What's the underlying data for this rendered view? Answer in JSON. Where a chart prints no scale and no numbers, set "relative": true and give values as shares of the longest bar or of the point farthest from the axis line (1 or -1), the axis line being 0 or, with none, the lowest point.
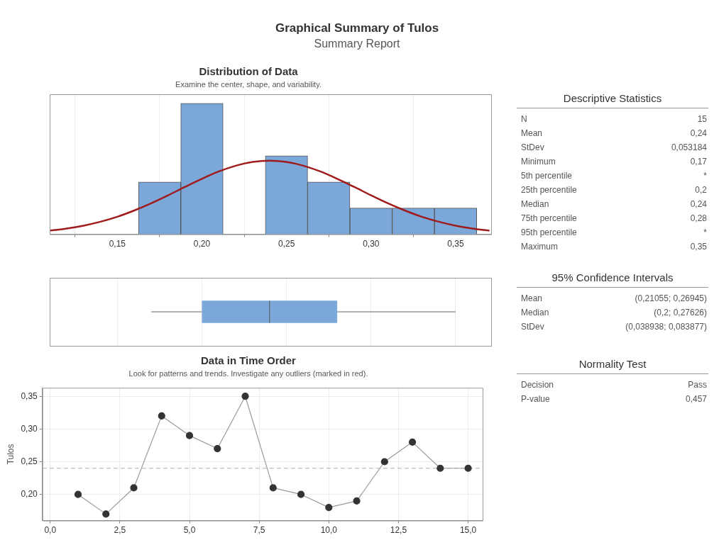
{
  "chart_data": [
    {
      "type": "other",
      "title": "Graphical Summary of Tulos",
      "subtitle": "Summary Report"
    },
    {
      "type": "histogram",
      "title": "Distribution of Data",
      "subtitle": "Examine the center, shape, and variability.",
      "relative": true,
      "grid": "x",
      "bins": [
        0.1625,
        0.1875,
        0.2125,
        0.2375,
        0.2625,
        0.2875,
        0.3125,
        0.3375,
        0.3625
      ],
      "xlim": [
        0.11,
        0.371
      ],
      "xticks": [
        {
          "value": 0.15,
          "label": "0,15"
        },
        {
          "value": 0.2,
          "label": "0,20"
        },
        {
          "value": 0.25,
          "label": "0,25"
        },
        {
          "value": 0.3,
          "label": "0,30"
        },
        {
          "value": 0.35,
          "label": "0,35"
        }
      ],
      "series": [
        {
          "type": "histogram",
          "color": "#7ba7d9",
          "values": [
            0.4,
            1,
            0,
            0.6,
            0.4,
            0.2,
            0.2,
            0.2
          ]
        },
        {
          "type": "line",
          "color": "#a01c1c",
          "x": [
            0.11,
            0.12,
            0.13,
            0.14,
            0.15,
            0.16,
            0.17,
            0.18,
            0.19,
            0.2,
            0.21,
            0.22,
            0.23,
            0.24,
            0.25,
            0.26,
            0.27,
            0.28,
            0.29,
            0.3,
            0.31,
            0.32,
            0.33,
            0.34,
            0.35,
            0.36,
            0.37
          ],
          "values": [
            0.028,
            0.044,
            0.066,
            0.096,
            0.134,
            0.182,
            0.237,
            0.298,
            0.362,
            0.424,
            0.48,
            0.524,
            0.553,
            0.563,
            0.553,
            0.524,
            0.48,
            0.424,
            0.362,
            0.298,
            0.237,
            0.182,
            0.134,
            0.096,
            0.066,
            0.044,
            0.028
          ]
        }
      ]
    },
    {
      "type": "box",
      "orientation": "horizontal",
      "categories": [
        null
      ],
      "color": "#7ba7d9",
      "grid": "x",
      "tick_labels": false,
      "xlim": [
        0.11,
        0.371
      ],
      "xticks": [
        {
          "value": 0.15,
          "label": null
        },
        {
          "value": 0.2,
          "label": null
        },
        {
          "value": 0.25,
          "label": null
        },
        {
          "value": 0.3,
          "label": null
        },
        {
          "value": 0.35,
          "label": null
        }
      ],
      "boxes": [
        {
          "low": 0.17,
          "q1": 0.2,
          "median": 0.24,
          "q3": 0.28,
          "high": 0.35
        }
      ]
    },
    {
      "type": "line",
      "title": "Data in Time Order",
      "subtitle": "Look for patterns and trends. Investigate any outliers (marked in red).",
      "ylabel": "Tulos",
      "marker": "circle",
      "grid": true,
      "color": "#333333",
      "x": [
        1,
        2,
        3,
        4,
        5,
        6,
        7,
        8,
        9,
        10,
        11,
        12,
        13,
        14,
        15
      ],
      "values": [
        0.2,
        0.17,
        0.21,
        0.32,
        0.29,
        0.27,
        0.35,
        0.21,
        0.2,
        0.18,
        0.19,
        0.25,
        0.28,
        0.24,
        0.24
      ],
      "xlim": [
        -0.28,
        15.52
      ],
      "xticks": [
        {
          "value": 0,
          "label": "0,0"
        },
        {
          "value": 2.5,
          "label": "2,5"
        },
        {
          "value": 5,
          "label": "5,0"
        },
        {
          "value": 7.5,
          "label": "7,5"
        },
        {
          "value": 10,
          "label": "10,0"
        },
        {
          "value": 12.5,
          "label": "12,5"
        },
        {
          "value": 15,
          "label": "15,0"
        }
      ],
      "ylim": [
        0.16,
        0.363
      ],
      "yticks": [
        {
          "value": 0.2,
          "label": "0,20"
        },
        {
          "value": 0.25,
          "label": "0,25"
        },
        {
          "value": 0.3,
          "label": "0,30"
        },
        {
          "value": 0.35,
          "label": "0,35"
        }
      ],
      "ref_lines": [
        {
          "axis": "y",
          "value": 0.24,
          "color": "#b0b0b0",
          "line_style": "dashed"
        }
      ]
    },
    {
      "type": "other",
      "title": "Descriptive Statistics",
      "annotations": [
        "N",
        "15",
        "Mean",
        "0,24",
        "StDev",
        "0,053184",
        "Minimum",
        "0,17",
        "5th percentile",
        "*",
        "25th percentile",
        "0,2",
        "Median",
        "0,24",
        "75th percentile",
        "0,28",
        "95th percentile",
        "*",
        "Maximum",
        "0,35"
      ]
    },
    {
      "type": "other",
      "title": "95% Confidence Intervals",
      "annotations": [
        "Mean",
        "(0,21055; 0,26945)",
        "Median",
        "(0,2; 0,27626)",
        "StDev",
        "(0,038938; 0,083877)"
      ]
    },
    {
      "type": "other",
      "title": "Normality Test",
      "annotations": [
        "Decision",
        "Pass",
        "P-value",
        "0,457"
      ]
    }
  ]
}
